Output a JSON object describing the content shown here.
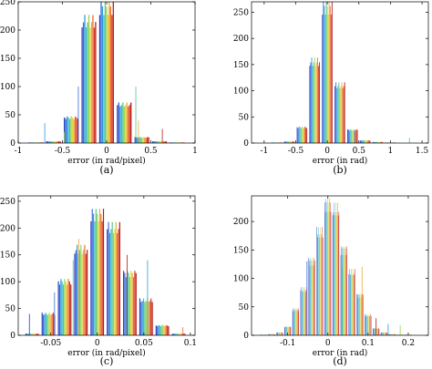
{
  "chart_data": [
    {
      "type": "bar",
      "panel": "(a)",
      "xlabel": "error (in rad/pixel)",
      "xlim": [
        -1,
        1
      ],
      "ylim": [
        0,
        250
      ],
      "xticks": [
        "-1",
        "-0.5",
        "0",
        "0.5",
        "1"
      ],
      "xtick_values": [
        -1,
        -0.5,
        0,
        0.5,
        1
      ],
      "yticks": [
        "0",
        "50",
        "100",
        "150",
        "200",
        "250"
      ],
      "ytick_values": [
        0,
        50,
        100,
        150,
        200,
        250
      ],
      "bin_centers": [
        -0.8,
        -0.6,
        -0.4,
        -0.2,
        0,
        0.2,
        0.4,
        0.6,
        0.8
      ],
      "bin_values": [
        1,
        3,
        45,
        215,
        240,
        68,
        10,
        3,
        1
      ],
      "bin_width": 0.2,
      "spikes": [
        {
          "x": -0.32,
          "value": 100
        },
        {
          "x": 0.33,
          "value": 100
        },
        {
          "x": 0.36,
          "value": 40
        },
        {
          "x": 0.63,
          "value": 25
        },
        {
          "x": -0.7,
          "value": 35
        },
        {
          "x": -0.48,
          "value": 20
        }
      ]
    },
    {
      "type": "bar",
      "panel": "(b)",
      "xlabel": "error (in rad)",
      "xlim": [
        -1.2,
        1.6
      ],
      "ylim": [
        0,
        270
      ],
      "xticks": [
        "-1",
        "-0.5",
        "0",
        "0.5",
        "1",
        "1.5"
      ],
      "xtick_values": [
        -1,
        -0.5,
        0,
        0.5,
        1,
        1.5
      ],
      "yticks": [
        "0",
        "50",
        "100",
        "150",
        "200",
        "250"
      ],
      "ytick_values": [
        0,
        50,
        100,
        150,
        200,
        250
      ],
      "bin_centers": [
        -0.8,
        -0.6,
        -0.4,
        -0.2,
        0,
        0.2,
        0.4,
        0.6,
        0.8,
        1.0
      ],
      "bin_values": [
        1,
        3,
        30,
        155,
        260,
        110,
        25,
        5,
        2,
        1
      ],
      "bin_width": 0.2,
      "spikes": [
        {
          "x": 0.43,
          "value": 25
        },
        {
          "x": 1.3,
          "value": 10
        }
      ]
    },
    {
      "type": "bar",
      "panel": "(c)",
      "xlabel": "error (in rad/pixel)",
      "xlim": [
        -0.085,
        0.105
      ],
      "ylim": [
        0,
        260
      ],
      "xticks": [
        "-0.05",
        "0",
        "0.05",
        "0.1"
      ],
      "xtick_values": [
        -0.05,
        0,
        0.05,
        0.1
      ],
      "yticks": [
        "0",
        "50",
        "100",
        "150",
        "200",
        "250"
      ],
      "ytick_values": [
        0,
        50,
        100,
        150,
        200,
        250
      ],
      "bin_centers": [
        -0.07,
        -0.0525,
        -0.035,
        -0.0175,
        0,
        0.0175,
        0.035,
        0.0525,
        0.07,
        0.0875
      ],
      "bin_values": [
        3,
        40,
        100,
        160,
        225,
        200,
        115,
        65,
        18,
        3
      ],
      "bin_width": 0.0175,
      "spikes": [
        {
          "x": -0.046,
          "value": 80
        },
        {
          "x": -0.026,
          "value": 140
        },
        {
          "x": -0.02,
          "value": 180
        },
        {
          "x": 0.032,
          "value": 150
        },
        {
          "x": 0.054,
          "value": 140
        },
        {
          "x": 0.07,
          "value": 20
        },
        {
          "x": 0.092,
          "value": 15
        },
        {
          "x": -0.073,
          "value": 40
        }
      ]
    },
    {
      "type": "bar",
      "panel": "(d)",
      "xlabel": "error (in rad)",
      "xlim": [
        -0.19,
        0.25
      ],
      "ylim": [
        0,
        245
      ],
      "xticks": [
        "-0.1",
        "0",
        "0.1",
        "0.2"
      ],
      "xtick_values": [
        -0.1,
        0,
        0.1,
        0.2
      ],
      "yticks": [
        "0",
        "50",
        "100",
        "150",
        "200"
      ],
      "ytick_values": [
        0,
        50,
        100,
        150,
        200
      ],
      "bin_centers": [
        -0.16,
        -0.14,
        -0.12,
        -0.1,
        -0.08,
        -0.06,
        -0.04,
        -0.02,
        0,
        0.02,
        0.04,
        0.06,
        0.08,
        0.1,
        0.12,
        0.14,
        0.16,
        0.18,
        0.2
      ],
      "bin_values": [
        1,
        2,
        5,
        15,
        45,
        80,
        130,
        180,
        230,
        220,
        150,
        110,
        70,
        35,
        12,
        5,
        2,
        1,
        1
      ],
      "bin_width": 0.02,
      "spikes": [
        {
          "x": -0.052,
          "value": 130
        },
        {
          "x": 0.036,
          "value": 120
        },
        {
          "x": 0.085,
          "value": 120
        },
        {
          "x": 0.12,
          "value": 30
        },
        {
          "x": 0.15,
          "value": 20
        },
        {
          "x": 0.18,
          "value": 18
        }
      ]
    }
  ],
  "captions": [
    "(a)",
    "(b)",
    "(c)",
    "(d)"
  ]
}
